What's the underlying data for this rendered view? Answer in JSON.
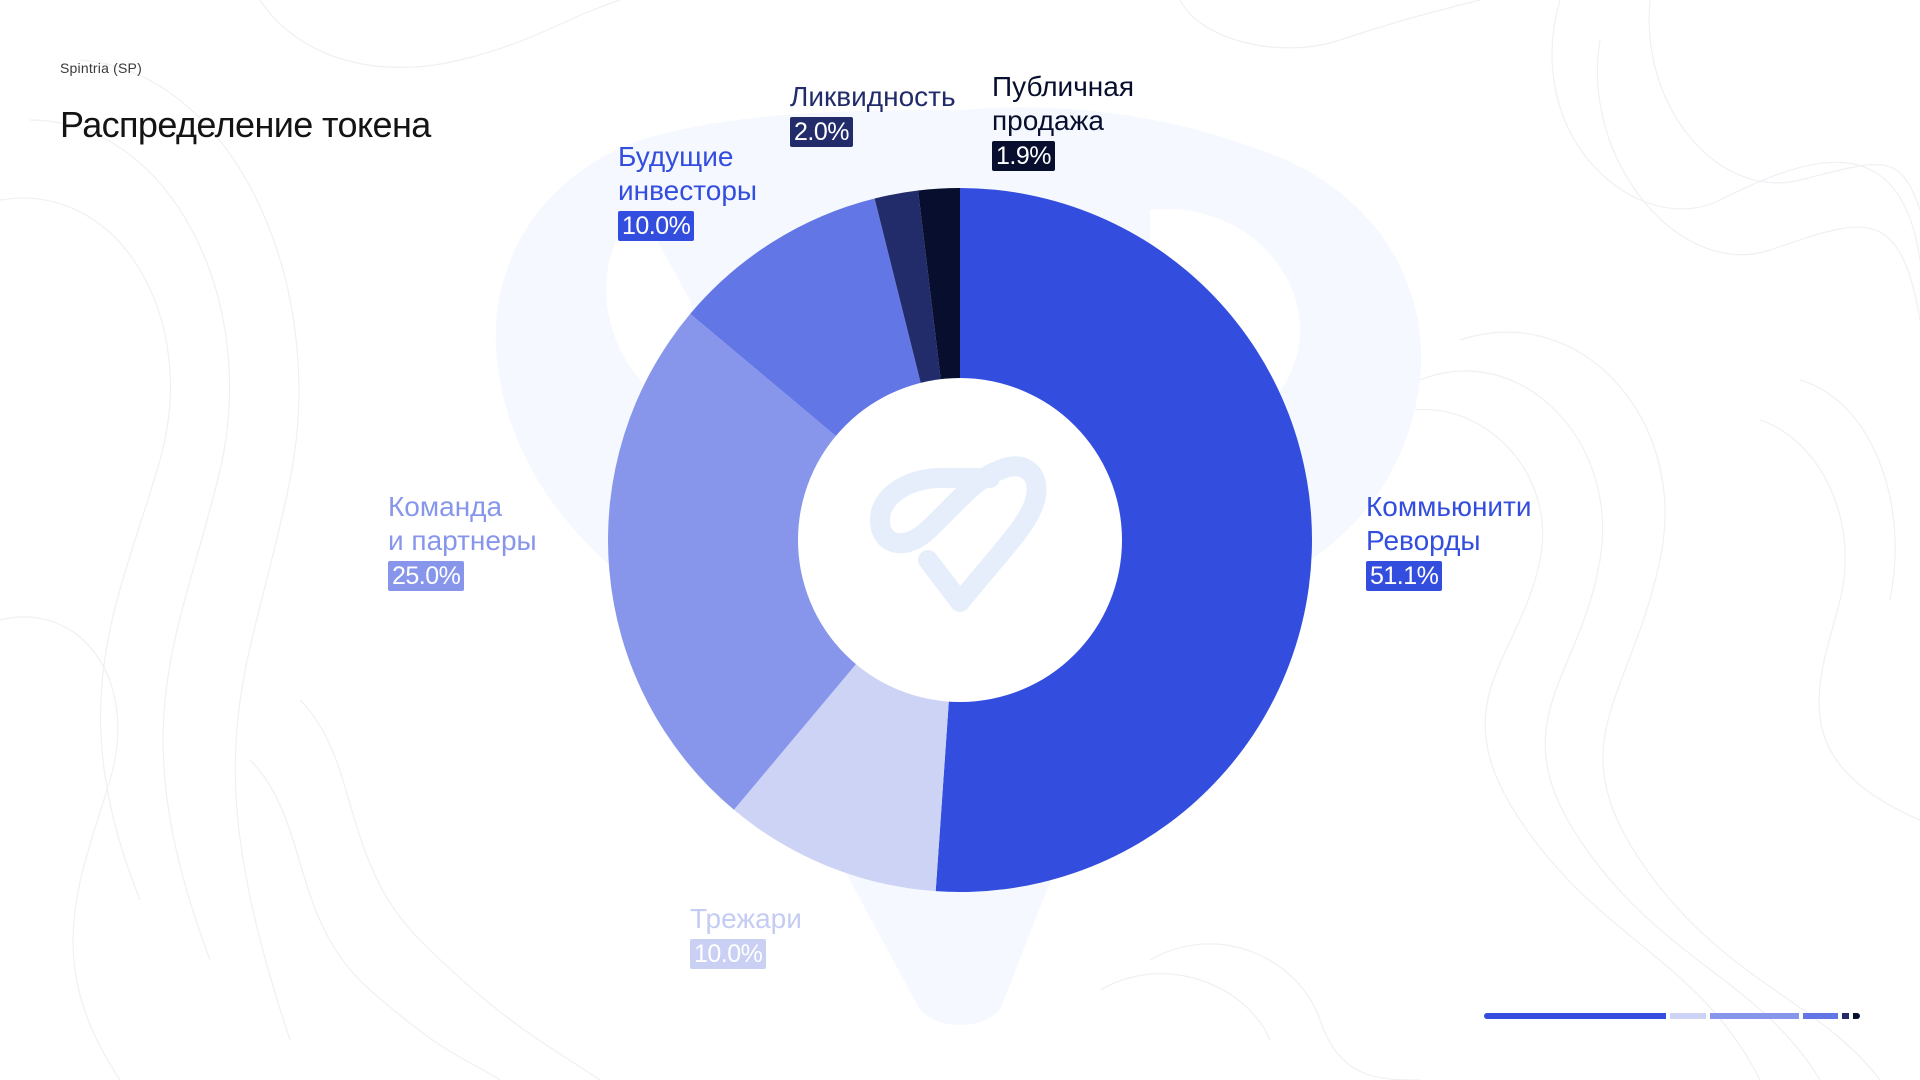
{
  "header": {
    "brand": "Spintria (SP)",
    "title": "Распределение токена"
  },
  "colors": {
    "community": "#334DDE",
    "treasury": "#CCD3F5",
    "team": "#8796EB",
    "investors": "#6276E6",
    "liquidity": "#232C6B",
    "public_sale": "#080E2E",
    "logo_watermark": "#E6EEFC",
    "bg_shape": "#F4F8FE"
  },
  "logo": {
    "icon": "spintria-heart-logo-icon"
  },
  "chart_data": {
    "type": "pie",
    "donut": true,
    "title": "Распределение токена",
    "legend": "labels-outside",
    "slices": [
      {
        "label_lines": [
          "Коммьюнити",
          "Реворды"
        ],
        "value": 51.1,
        "pct_label": "51.1%",
        "color": "#334DDE",
        "text_color": "#334DDE"
      },
      {
        "label_lines": [
          "Трежари"
        ],
        "value": 10.0,
        "pct_label": "10.0%",
        "color": "#CCD3F5",
        "text_color": "#C4CCF3"
      },
      {
        "label_lines": [
          "Команда",
          "и партнеры"
        ],
        "value": 25.0,
        "pct_label": "25.0%",
        "color": "#8796EB",
        "text_color": "#8796EB"
      },
      {
        "label_lines": [
          "Будущие",
          "инвесторы"
        ],
        "value": 10.0,
        "pct_label": "10.0%",
        "color": "#6276E6",
        "text_color": "#334DDE"
      },
      {
        "label_lines": [
          "Ликвидность"
        ],
        "value": 2.0,
        "pct_label": "2.0%",
        "color": "#232C6B",
        "text_color": "#232C6B"
      },
      {
        "label_lines": [
          "Публичная",
          "продажа"
        ],
        "value": 1.9,
        "pct_label": "1.9%",
        "color": "#080E2E",
        "text_color": "#080E2E"
      }
    ]
  }
}
